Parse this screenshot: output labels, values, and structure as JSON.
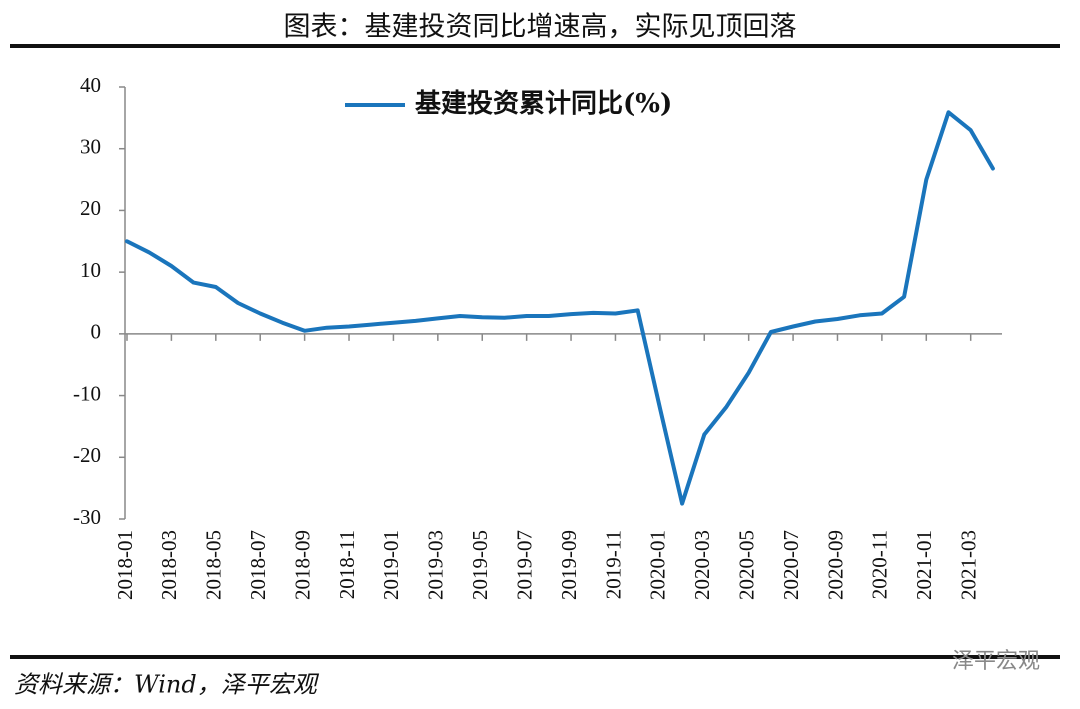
{
  "chart_data": {
    "type": "line",
    "title": "图表：基建投资同比增速高，实际见顶回落",
    "categories": [
      "2018-01",
      null,
      "2018-03",
      null,
      "2018-05",
      null,
      "2018-07",
      null,
      "2018-09",
      null,
      "2018-11",
      null,
      "2019-01",
      null,
      "2019-03",
      null,
      "2019-05",
      null,
      "2019-07",
      null,
      "2019-09",
      null,
      "2019-11",
      null,
      "2020-01",
      null,
      "2020-03",
      null,
      "2020-05",
      null,
      "2020-07",
      null,
      "2020-09",
      null,
      "2020-11",
      null,
      "2021-01",
      null,
      "2021-03",
      null
    ],
    "series": [
      {
        "name": "基建投资累计同比(%)",
        "color": "#1a75bc",
        "values": [
          15,
          13.2,
          11,
          8.3,
          7.6,
          5,
          3.3,
          1.8,
          0.5,
          1.0,
          1.2,
          1.5,
          1.8,
          2.1,
          2.5,
          2.9,
          2.7,
          2.6,
          2.9,
          2.9,
          3.2,
          3.4,
          3.3,
          3.8,
          -12,
          -27.5,
          -16.3,
          -11.8,
          -6.3,
          0.3,
          1.2,
          2.0,
          2.4,
          3.0,
          3.3,
          6,
          25,
          35.9,
          33,
          26.8
        ]
      }
    ],
    "ylim": [
      -30,
      40
    ],
    "yticks": [
      -30,
      -20,
      -10,
      0,
      10,
      20,
      30,
      40
    ],
    "legend": "top",
    "source": "资料来源：Wind，泽平宏观",
    "watermark": "泽平宏观"
  }
}
